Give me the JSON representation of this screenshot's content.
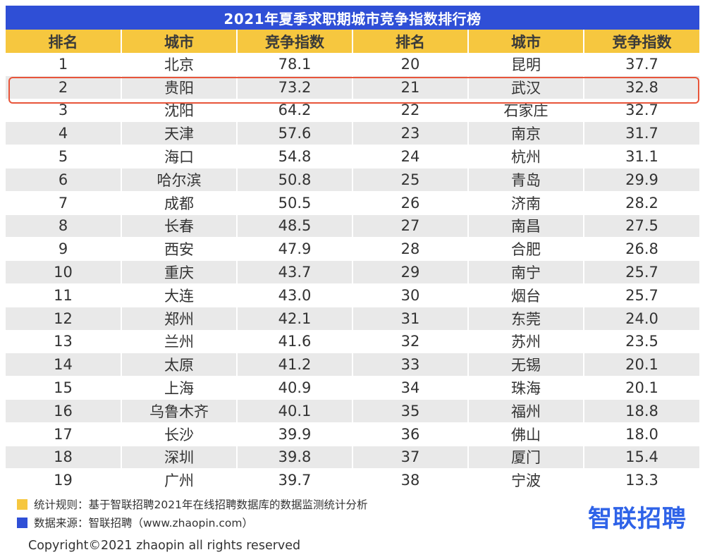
{
  "title": "2021年夏季求职期城市竞争指数排行榜",
  "table": {
    "headers": [
      "排名",
      "城市",
      "竞争指数",
      "排名",
      "城市",
      "竞争指数"
    ],
    "rows": [
      [
        "1",
        "北京",
        "78.1",
        "20",
        "昆明",
        "37.7"
      ],
      [
        "2",
        "贵阳",
        "73.2",
        "21",
        "武汉",
        "32.8"
      ],
      [
        "3",
        "沈阳",
        "64.2",
        "22",
        "石家庄",
        "32.7"
      ],
      [
        "4",
        "天津",
        "57.6",
        "23",
        "南京",
        "31.7"
      ],
      [
        "5",
        "海口",
        "54.8",
        "24",
        "杭州",
        "31.1"
      ],
      [
        "6",
        "哈尔滨",
        "50.8",
        "25",
        "青岛",
        "29.9"
      ],
      [
        "7",
        "成都",
        "50.5",
        "26",
        "济南",
        "28.2"
      ],
      [
        "8",
        "长春",
        "48.5",
        "27",
        "南昌",
        "27.5"
      ],
      [
        "9",
        "西安",
        "47.9",
        "28",
        "合肥",
        "26.8"
      ],
      [
        "10",
        "重庆",
        "43.7",
        "29",
        "南宁",
        "25.7"
      ],
      [
        "11",
        "大连",
        "43.0",
        "30",
        "烟台",
        "25.7"
      ],
      [
        "12",
        "郑州",
        "42.1",
        "31",
        "东莞",
        "24.0"
      ],
      [
        "13",
        "兰州",
        "41.6",
        "32",
        "苏州",
        "23.5"
      ],
      [
        "14",
        "太原",
        "41.2",
        "33",
        "无锡",
        "20.1"
      ],
      [
        "15",
        "上海",
        "40.9",
        "34",
        "珠海",
        "20.1"
      ],
      [
        "16",
        "乌鲁木齐",
        "40.1",
        "35",
        "福州",
        "18.8"
      ],
      [
        "17",
        "长沙",
        "39.9",
        "36",
        "佛山",
        "18.0"
      ],
      [
        "18",
        "深圳",
        "39.8",
        "37",
        "厦门",
        "15.4"
      ],
      [
        "19",
        "广州",
        "39.7",
        "38",
        "宁波",
        "13.3"
      ]
    ],
    "highlighted_row": 1
  },
  "footer": {
    "legend": [
      {
        "text": "统计规则：基于智联招聘2021年在线招聘数据库的数据监测统计分析",
        "color": "#f6c73f"
      },
      {
        "text": "数据来源：智联招聘（www.zhaopin.com）",
        "color": "#2f4fd6"
      }
    ],
    "logo": "智联招聘",
    "copyright": "Copyright©2021 zhaopin all rights reserved"
  },
  "colors": {
    "title_bg": "#2f4fd6",
    "header_bg": "#f6c73f",
    "stripe": "#e9e9e9",
    "highlight": "#e8553a",
    "logo": "#2f63e8"
  }
}
